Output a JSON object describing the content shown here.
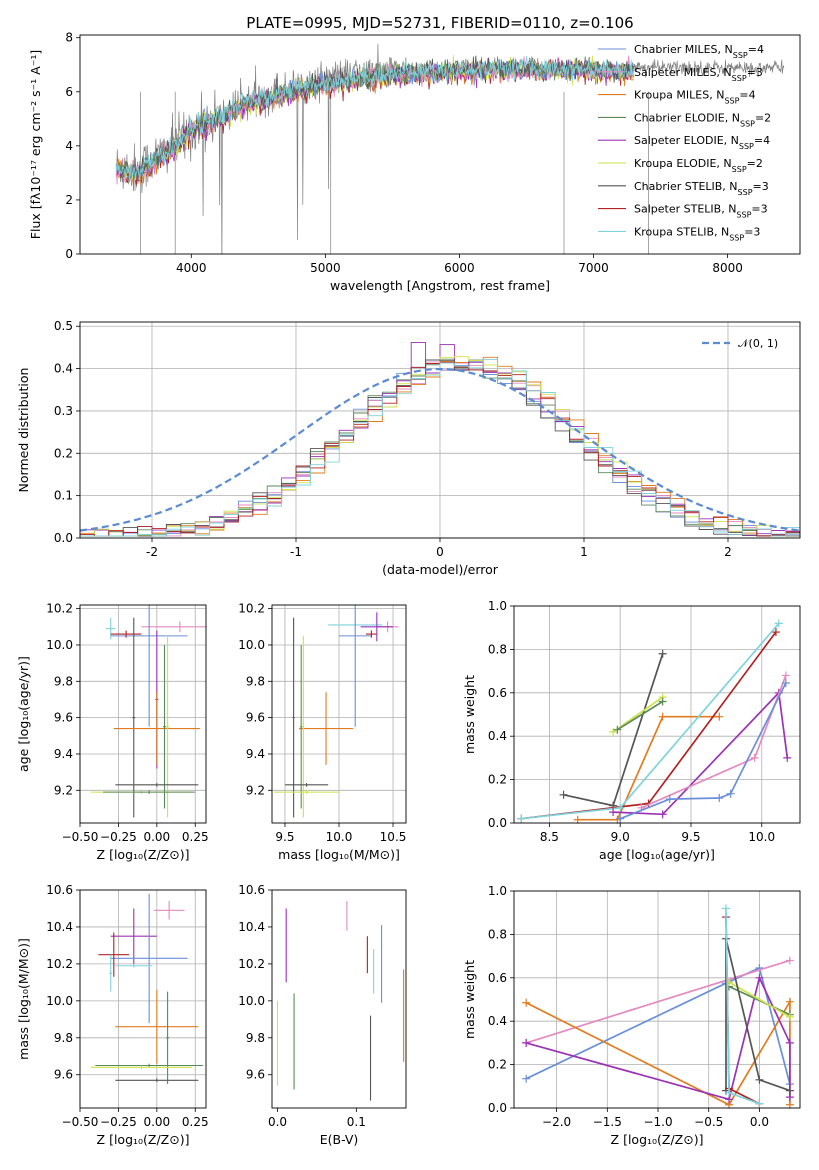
{
  "colors": {
    "chabrier_miles": "#6a8fd8",
    "salpeter_miles": "#e48ac0",
    "kroupa_miles": "#e07b1f",
    "chabrier_elodie": "#5a8a5a",
    "salpeter_elodie": "#9b32b5",
    "kroupa_elodie": "#cde24a",
    "chabrier_stelib": "#555555",
    "salpeter_stelib": "#b22222",
    "kroupa_stelib": "#7fd3dc",
    "normal": "#5b8bd0",
    "grid": "#b0b0b0",
    "spectrum": "#808080"
  },
  "chart_data": [
    {
      "id": "spectrum",
      "type": "line",
      "title": "PLATE=0995, MJD=52731, FIBERID=0110, z=0.106",
      "xlabel": "wavelength [Angstrom, rest frame]",
      "ylabel": "Flux [fλ10⁻¹⁷ erg cm⁻² s⁻¹ A⁻¹]",
      "xlim": [
        3170,
        8540
      ],
      "ylim": [
        0,
        8.1
      ],
      "xticks": [
        4000,
        5000,
        6000,
        7000,
        8000
      ],
      "yticks": [
        0,
        2,
        4,
        6,
        8
      ],
      "grid": false,
      "legend_position": "top-right",
      "legend": [
        {
          "label": "Chabrier MILES, N",
          "sub": "SSP",
          "suffix": "=4",
          "color_key": "chabrier_miles"
        },
        {
          "label": "Salpeter MILES, N",
          "sub": "SSP",
          "suffix": "=3",
          "color_key": "salpeter_miles"
        },
        {
          "label": "Kroupa MILES, N",
          "sub": "SSP",
          "suffix": "=4",
          "color_key": "kroupa_miles"
        },
        {
          "label": "Chabrier ELODIE, N",
          "sub": "SSP",
          "suffix": "=2",
          "color_key": "chabrier_elodie"
        },
        {
          "label": "Salpeter ELODIE, N",
          "sub": "SSP",
          "suffix": "=4",
          "color_key": "salpeter_elodie"
        },
        {
          "label": "Kroupa ELODIE, N",
          "sub": "SSP",
          "suffix": "=2",
          "color_key": "kroupa_elodie"
        },
        {
          "label": "Chabrier STELIB, N",
          "sub": "SSP",
          "suffix": "=3",
          "color_key": "chabrier_stelib"
        },
        {
          "label": "Salpeter STELIB, N",
          "sub": "SSP",
          "suffix": "=3",
          "color_key": "salpeter_stelib"
        },
        {
          "label": "Kroupa STELIB, N",
          "sub": "SSP",
          "suffix": "=3",
          "color_key": "kroupa_stelib"
        }
      ],
      "data_continuum": {
        "x": [
          3450,
          3600,
          3750,
          3900,
          4000,
          4200,
          4400,
          4600,
          4800,
          5000,
          5200,
          5400,
          5600,
          5800,
          6000,
          6200,
          6400,
          6600,
          6800,
          7000,
          7200,
          7400,
          7600,
          7800,
          8000,
          8200,
          8400
        ],
        "y": [
          3.2,
          3.1,
          3.6,
          4.1,
          4.6,
          5.1,
          5.6,
          5.9,
          6.2,
          6.5,
          6.6,
          6.7,
          6.8,
          6.85,
          6.9,
          6.95,
          6.95,
          7.0,
          7.0,
          6.9,
          6.9,
          6.9,
          6.9,
          6.9,
          6.9,
          6.85,
          6.9
        ]
      },
      "model_continuum": {
        "x": [
          3450,
          3600,
          3750,
          3900,
          4000,
          4200,
          4400,
          4600,
          4800,
          5000,
          5200,
          5400,
          5600,
          5800,
          6000,
          6200,
          6400,
          6600,
          6800,
          7000,
          7200,
          7300
        ],
        "y": [
          3.1,
          3.0,
          3.5,
          4.0,
          4.6,
          5.0,
          5.5,
          5.8,
          6.1,
          6.3,
          6.45,
          6.55,
          6.65,
          6.7,
          6.75,
          6.8,
          6.8,
          6.8,
          6.8,
          6.75,
          6.75,
          6.7
        ]
      }
    },
    {
      "id": "residuals",
      "type": "histogram",
      "xlabel": "(data-model)/error",
      "ylabel": "Normed distribution",
      "xlim": [
        -2.5,
        2.5
      ],
      "ylim": [
        0,
        0.51
      ],
      "xticks": [
        -2,
        -1,
        0,
        1,
        2
      ],
      "yticks": [
        0.0,
        0.1,
        0.2,
        0.3,
        0.4,
        0.5
      ],
      "grid": true,
      "legend_position": "top-right",
      "legend": [
        {
          "label": "𝒩(0, 1)",
          "color_key": "normal"
        }
      ],
      "bins": {
        "start": -2.5,
        "width": 0.1,
        "count": 50
      }
    },
    {
      "id": "age_vs_Z",
      "type": "errorbar",
      "xlabel": "Z [log₁₀(Z/Z⊙)]",
      "ylabel": "age  [log₁₀(age/yr)]",
      "xlim": [
        -0.5,
        0.32
      ],
      "ylim": [
        9.02,
        10.22
      ],
      "xticks": [
        -0.5,
        -0.25,
        0.0,
        0.25
      ],
      "xticklabels": [
        "−0.50",
        "−0.25",
        "0.00",
        "0.25"
      ],
      "yticks": [
        9.2,
        9.4,
        9.6,
        9.8,
        10.0,
        10.2
      ],
      "grid": true,
      "points": [
        {
          "x": -0.3,
          "y": 10.09,
          "xerr": 0.03,
          "yerr": 0.06,
          "color_key": "kroupa_stelib"
        },
        {
          "x": 0.15,
          "y": 10.1,
          "xerr": 0.25,
          "yerr": 0.03,
          "color_key": "salpeter_miles"
        },
        {
          "x": -0.05,
          "y": 10.05,
          "xerr": 0.25,
          "yerr": 0.5,
          "color_key": "chabrier_miles"
        },
        {
          "x": -0.2,
          "y": 10.06,
          "xerr": 0.1,
          "yerr": 0.02,
          "color_key": "salpeter_stelib"
        },
        {
          "x": -0.15,
          "y": 9.6,
          "xerr": 0.01,
          "yerr": 0.55,
          "color_key": "chabrier_stelib"
        },
        {
          "x": 0.0,
          "y": 9.7,
          "xerr": 0.01,
          "yerr": 0.38,
          "color_key": "salpeter_elodie"
        },
        {
          "x": 0.0,
          "y": 9.54,
          "xerr": 0.28,
          "yerr": 0.2,
          "color_key": "kroupa_miles"
        },
        {
          "x": 0.05,
          "y": 9.55,
          "xerr": 0.01,
          "yerr": 0.45,
          "color_key": "chabrier_elodie"
        },
        {
          "x": 0.07,
          "y": 9.55,
          "xerr": 0.01,
          "yerr": 0.5,
          "color_key": "kroupa_elodie"
        },
        {
          "x": 0.0,
          "y": 9.23,
          "xerr": 0.27,
          "yerr": 0.01,
          "color_key": "chabrier_stelib"
        },
        {
          "x": -0.1,
          "y": 9.19,
          "xerr": 0.33,
          "yerr": 0.01,
          "color_key": "kroupa_elodie"
        },
        {
          "x": -0.05,
          "y": 9.19,
          "xerr": 0.3,
          "yerr": 0.01,
          "color_key": "chabrier_elodie"
        }
      ]
    },
    {
      "id": "age_vs_mass",
      "type": "errorbar",
      "xlabel": "mass [log₁₀(M/M⊙)]",
      "ylabel": "",
      "xlim": [
        9.38,
        10.62
      ],
      "ylim": [
        9.02,
        10.22
      ],
      "xticks": [
        9.5,
        10.0,
        10.5
      ],
      "xticklabels": [
        "9.5",
        "10.0",
        "10.5"
      ],
      "yticks": [
        9.2,
        9.4,
        9.6,
        9.8,
        10.0,
        10.2
      ],
      "grid": true,
      "points": [
        {
          "x": 10.15,
          "y": 10.11,
          "xerr": 0.25,
          "yerr": 0.01,
          "color_key": "kroupa_stelib"
        },
        {
          "x": 10.45,
          "y": 10.1,
          "xerr": 0.1,
          "yerr": 0.03,
          "color_key": "salpeter_miles"
        },
        {
          "x": 10.15,
          "y": 10.05,
          "xerr": 0.15,
          "yerr": 0.5,
          "color_key": "chabrier_miles"
        },
        {
          "x": 10.3,
          "y": 10.06,
          "xerr": 0.05,
          "yerr": 0.02,
          "color_key": "salpeter_stelib"
        },
        {
          "x": 10.35,
          "y": 10.1,
          "xerr": 0.15,
          "yerr": 0.08,
          "color_key": "salpeter_elodie"
        },
        {
          "x": 9.88,
          "y": 9.54,
          "xerr": 0.25,
          "yerr": 0.2,
          "color_key": "kroupa_miles"
        },
        {
          "x": 9.58,
          "y": 9.6,
          "xerr": 0.01,
          "yerr": 0.55,
          "color_key": "chabrier_stelib"
        },
        {
          "x": 9.65,
          "y": 9.55,
          "xerr": 0.01,
          "yerr": 0.45,
          "color_key": "chabrier_elodie"
        },
        {
          "x": 9.67,
          "y": 9.55,
          "xerr": 0.01,
          "yerr": 0.5,
          "color_key": "kroupa_elodie"
        },
        {
          "x": 9.7,
          "y": 9.23,
          "xerr": 0.2,
          "yerr": 0.01,
          "color_key": "chabrier_stelib"
        },
        {
          "x": 9.7,
          "y": 9.19,
          "xerr": 0.3,
          "yerr": 0.01,
          "color_key": "kroupa_elodie"
        }
      ]
    },
    {
      "id": "weight_vs_age",
      "type": "line",
      "xlabel": "age  [log₁₀(age/yr)]",
      "ylabel": "mass weight",
      "xlim": [
        8.25,
        10.27
      ],
      "ylim": [
        0,
        1.0
      ],
      "xticks": [
        8.5,
        9.0,
        9.5,
        10.0
      ],
      "xticklabels": [
        "8.5",
        "9.0",
        "9.5",
        "10.0"
      ],
      "yticks": [
        0.0,
        0.2,
        0.4,
        0.6,
        0.8,
        1.0
      ],
      "grid": true,
      "series": [
        {
          "color_key": "chabrier_stelib",
          "x": [
            8.6,
            8.95,
            9.3
          ],
          "y": [
            0.13,
            0.08,
            0.78
          ]
        },
        {
          "color_key": "kroupa_elodie",
          "x": [
            8.95,
            9.3
          ],
          "y": [
            0.42,
            0.58
          ]
        },
        {
          "color_key": "chabrier_elodie",
          "x": [
            8.98,
            9.3
          ],
          "y": [
            0.43,
            0.56
          ]
        },
        {
          "color_key": "kroupa_miles",
          "x": [
            8.7,
            8.98,
            9.3,
            9.7
          ],
          "y": [
            0.015,
            0.015,
            0.49,
            0.49
          ]
        },
        {
          "color_key": "salpeter_stelib",
          "x": [
            8.3,
            9.2,
            10.1
          ],
          "y": [
            0.02,
            0.09,
            0.88
          ]
        },
        {
          "color_key": "kroupa_stelib",
          "x": [
            8.3,
            9.0,
            10.12
          ],
          "y": [
            0.02,
            0.07,
            0.92
          ]
        },
        {
          "color_key": "salpeter_elodie",
          "x": [
            8.95,
            9.3,
            10.12,
            10.18
          ],
          "y": [
            0.05,
            0.04,
            0.6,
            0.3
          ]
        },
        {
          "color_key": "salpeter_miles",
          "x": [
            9.15,
            9.95,
            10.17
          ],
          "y": [
            0.07,
            0.3,
            0.68
          ]
        },
        {
          "color_key": "chabrier_miles",
          "x": [
            9.0,
            9.35,
            9.7,
            9.78,
            10.17
          ],
          "y": [
            0.02,
            0.11,
            0.115,
            0.135,
            0.645
          ]
        }
      ]
    },
    {
      "id": "mass_vs_Z",
      "type": "errorbar",
      "xlabel": "Z [log₁₀(Z/Z⊙)]",
      "ylabel": "mass [log₁₀(M/M⊙)]",
      "xlim": [
        -0.5,
        0.32
      ],
      "ylim": [
        9.42,
        10.6
      ],
      "xticks": [
        -0.5,
        -0.25,
        0.0,
        0.25
      ],
      "xticklabels": [
        "−0.50",
        "−0.25",
        "0.00",
        "0.25"
      ],
      "yticks": [
        9.6,
        9.8,
        10.0,
        10.2,
        10.4,
        10.6
      ],
      "grid": true,
      "points": [
        {
          "x": 0.08,
          "y": 10.49,
          "xerr": 0.1,
          "yerr": 0.05,
          "color_key": "salpeter_miles"
        },
        {
          "x": -0.15,
          "y": 10.35,
          "xerr": 0.15,
          "yerr": 0.15,
          "color_key": "salpeter_elodie"
        },
        {
          "x": -0.05,
          "y": 10.23,
          "xerr": 0.25,
          "yerr": 0.35,
          "color_key": "chabrier_miles"
        },
        {
          "x": -0.28,
          "y": 10.25,
          "xerr": 0.1,
          "yerr": 0.12,
          "color_key": "salpeter_stelib"
        },
        {
          "x": -0.15,
          "y": 10.19,
          "xerr": 0.12,
          "yerr": 0.01,
          "color_key": "kroupa_stelib"
        },
        {
          "x": -0.3,
          "y": 10.15,
          "xerr": 0.01,
          "yerr": 0.1,
          "color_key": "kroupa_stelib"
        },
        {
          "x": 0.0,
          "y": 9.86,
          "xerr": 0.27,
          "yerr": 0.2,
          "color_key": "kroupa_miles"
        },
        {
          "x": 0.07,
          "y": 9.8,
          "xerr": 0.01,
          "yerr": 0.25,
          "color_key": "chabrier_elodie"
        },
        {
          "x": -0.05,
          "y": 9.65,
          "xerr": 0.35,
          "yerr": 0.01,
          "color_key": "chabrier_elodie"
        },
        {
          "x": -0.1,
          "y": 9.64,
          "xerr": 0.33,
          "yerr": 0.01,
          "color_key": "kroupa_elodie"
        },
        {
          "x": 0.0,
          "y": 9.57,
          "xerr": 0.27,
          "yerr": 0.01,
          "color_key": "chabrier_stelib"
        }
      ]
    },
    {
      "id": "mass_vs_ebv",
      "type": "errorbar",
      "xlabel": "E(B-V)",
      "ylabel": "",
      "xlim": [
        -0.007,
        0.163
      ],
      "ylim": [
        9.42,
        10.6
      ],
      "xticks": [
        0.0,
        0.1
      ],
      "xticklabels": [
        "0.0",
        "0.1"
      ],
      "yticks": [
        9.6,
        9.8,
        10.0,
        10.2,
        10.4,
        10.6
      ],
      "grid": false,
      "points": [
        {
          "x": 0.088,
          "y": 10.46,
          "xerr": 0.0,
          "yerr": 0.08,
          "color_key": "salpeter_miles"
        },
        {
          "x": 0.011,
          "y": 10.3,
          "xerr": 0.0,
          "yerr": 0.2,
          "color_key": "salpeter_elodie"
        },
        {
          "x": 0.132,
          "y": 10.2,
          "xerr": 0.0,
          "yerr": 0.21,
          "color_key": "chabrier_miles"
        },
        {
          "x": 0.114,
          "y": 10.25,
          "xerr": 0.0,
          "yerr": 0.1,
          "color_key": "salpeter_stelib"
        },
        {
          "x": 0.122,
          "y": 10.16,
          "xerr": 0.0,
          "yerr": 0.12,
          "color_key": "kroupa_stelib"
        },
        {
          "x": 0.16,
          "y": 9.92,
          "xerr": 0.0,
          "yerr": 0.25,
          "color_key": "kroupa_miles"
        },
        {
          "x": 0.021,
          "y": 9.78,
          "xerr": 0.0,
          "yerr": 0.26,
          "color_key": "chabrier_elodie"
        },
        {
          "x": 0.0,
          "y": 9.77,
          "xerr": 0.0,
          "yerr": 0.23,
          "color_key": "kroupa_elodie"
        },
        {
          "x": 0.118,
          "y": 9.69,
          "xerr": 0.0,
          "yerr": 0.23,
          "color_key": "chabrier_stelib"
        }
      ]
    },
    {
      "id": "weight_vs_Z",
      "type": "line",
      "xlabel": "Z [log₁₀(Z/Z⊙)]",
      "ylabel": "mass weight",
      "xlim": [
        -2.42,
        0.4
      ],
      "ylim": [
        0,
        1.0
      ],
      "xticks": [
        -2.0,
        -1.5,
        -1.0,
        -0.5,
        0.0
      ],
      "xticklabels": [
        "−2.0",
        "−1.5",
        "−1.0",
        "−0.5",
        "0.0"
      ],
      "yticks": [
        0.0,
        0.2,
        0.4,
        0.6,
        0.8,
        1.0
      ],
      "grid": true,
      "series": [
        {
          "color_key": "chabrier_miles",
          "x": [
            -2.3,
            -0.33,
            0.0,
            0.3
          ],
          "y": [
            0.135,
            0.575,
            0.645,
            0.11
          ]
        },
        {
          "color_key": "salpeter_miles",
          "x": [
            -2.3,
            0.3
          ],
          "y": [
            0.3,
            0.68
          ]
        },
        {
          "color_key": "kroupa_miles",
          "x": [
            -2.3,
            -0.3,
            0.3,
            0.3
          ],
          "y": [
            0.485,
            0.015,
            0.49,
            0.015
          ]
        },
        {
          "color_key": "salpeter_elodie",
          "x": [
            -2.3,
            -0.3,
            0.0,
            0.3,
            0.3
          ],
          "y": [
            0.3,
            0.04,
            0.6,
            0.3,
            0.05
          ]
        },
        {
          "color_key": "chabrier_elodie",
          "x": [
            -0.3,
            0.3
          ],
          "y": [
            0.56,
            0.43
          ]
        },
        {
          "color_key": "kroupa_elodie",
          "x": [
            -0.3,
            0.3
          ],
          "y": [
            0.58,
            0.42
          ]
        },
        {
          "color_key": "chabrier_stelib",
          "x": [
            -0.33,
            -0.33,
            0.0,
            0.3
          ],
          "y": [
            0.08,
            0.78,
            0.13,
            0.08
          ]
        },
        {
          "color_key": "salpeter_stelib",
          "x": [
            -0.33,
            -0.3,
            0.0
          ],
          "y": [
            0.88,
            0.09,
            0.02
          ]
        },
        {
          "color_key": "kroupa_stelib",
          "x": [
            -0.33,
            -0.3,
            0.0
          ],
          "y": [
            0.92,
            0.07,
            0.02
          ]
        }
      ]
    }
  ]
}
